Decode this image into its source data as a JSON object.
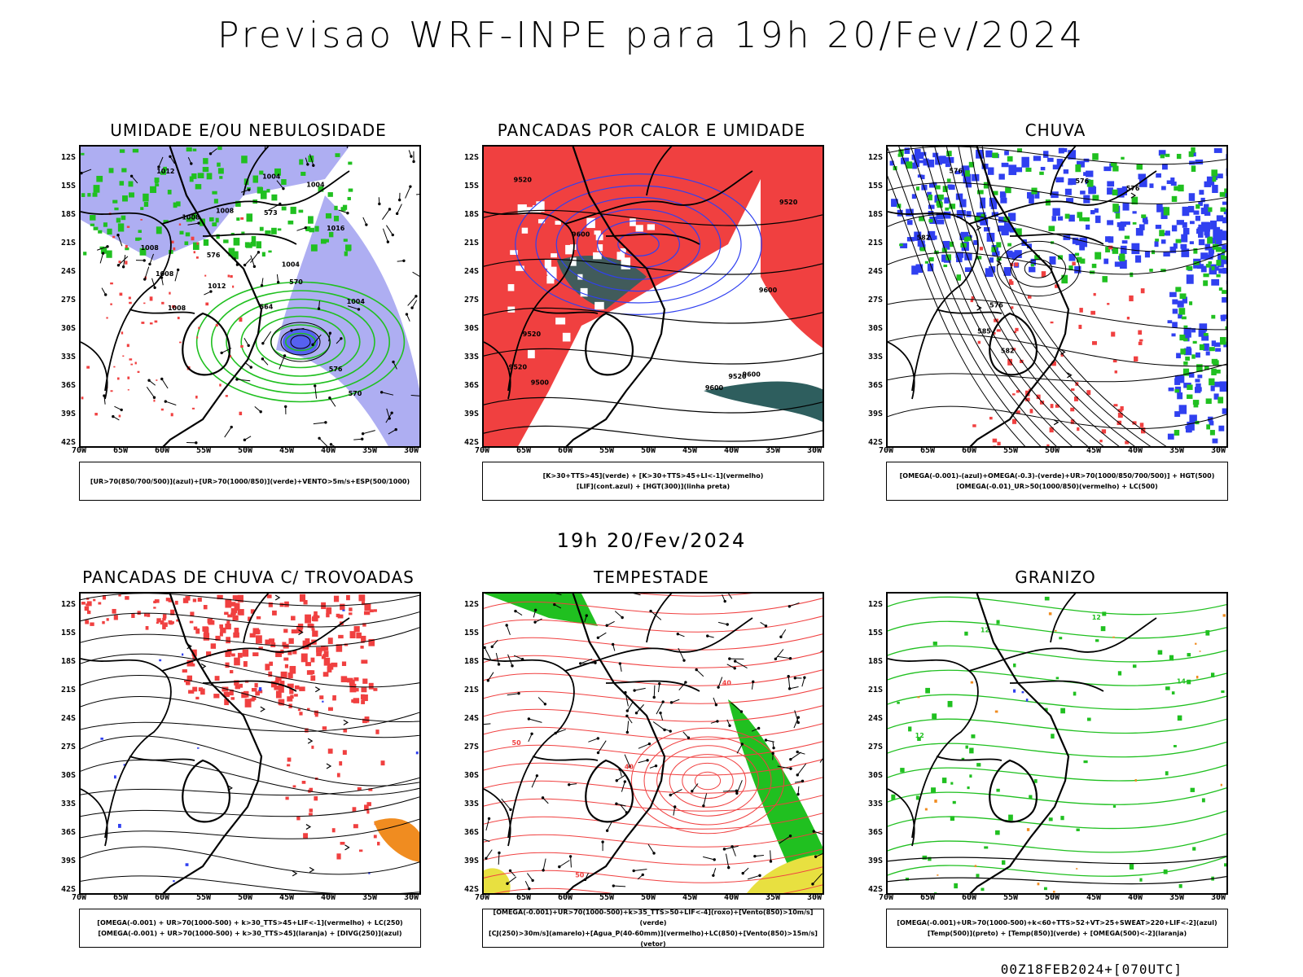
{
  "title": "Previsao WRF-INPE  para 19h 20/Fev/2024",
  "mid_title": "19h 20/Fev/2024",
  "footer": "00Z18FEB2024+[070UTC]",
  "lat_labels": [
    "12S",
    "15S",
    "18S",
    "21S",
    "24S",
    "27S",
    "30S",
    "33S",
    "36S",
    "39S",
    "42S"
  ],
  "lon_labels": [
    "70W",
    "65W",
    "60W",
    "55W",
    "50W",
    "45W",
    "40W",
    "35W",
    "30W"
  ],
  "colors": {
    "red": "#f04040",
    "green": "#20c020",
    "blue": "#3040f0",
    "lavender": "#a0a0f0",
    "teal": "#2e5e5e",
    "orange": "#f08c20",
    "yellow": "#e8e040"
  },
  "panels": [
    {
      "title": "UMIDADE E/OU NEBULOSIDADE",
      "legend": [
        "[UR>70(850/700/500)](azul)+[UR>70(1000/850)](verde)+VENTO>5m/s+ESP(500/1000)"
      ],
      "contour_labels": [
        "1008",
        "1008",
        "1004",
        "1012",
        "1004",
        "1008",
        "1008",
        "1012",
        "1004",
        "1004",
        "1008",
        "1016",
        "570",
        "576",
        "576",
        "573",
        "570",
        "564"
      ]
    },
    {
      "title": "PANCADAS POR CALOR E UMIDADE",
      "legend": [
        "[K>30+TTS>45](verde) + [K>30+TTS>45+LI<-1](vermelho)",
        "[LIF](cont.azul) + [HGT(300)](linha preta)"
      ],
      "contour_labels": [
        "9600",
        "9600",
        "9520",
        "9600",
        "9600",
        "9520",
        "9500",
        "9520",
        "9520",
        "9520"
      ]
    },
    {
      "title": "CHUVA",
      "legend": [
        "[OMEGA(-0.001)-(azul)+OMEGA(-0.3)-(verde)+UR>70(1000/850/700/500)] + HGT(500)",
        "[OMEGA(-0.01)_UR>50(1000/850)(vermelho) + LC(500)"
      ],
      "contour_labels": [
        "585",
        "576",
        "582",
        "576",
        "582",
        "576",
        "576"
      ]
    },
    {
      "title": "PANCADAS DE CHUVA C/ TROVOADAS",
      "legend": [
        "[OMEGA(-0.001) + UR>70(1000-500) + k>30_TTS>45+LIF<-1](vermelho) + LC(250)",
        "[OMEGA(-0.001) + UR>70(1000-500) + k>30_TTS>45](laranja) + [DIVG(250)](azul)"
      ],
      "contour_labels": []
    },
    {
      "title": "TEMPESTADE",
      "legend": [
        "[OMEGA(-0.001)+UR>70(1000-500)+k>35_TTS>50+LIF<-4](roxo)+[Vento(850)>10m/s](verde)",
        "[CJ(250)>30m/s](amarelo)+[Agua_P(40-60mm)](vermelho)+LC(850)+[Vento(850)>15m/s](vetor)"
      ],
      "contour_labels": [
        "50",
        "40",
        "50",
        "40"
      ]
    },
    {
      "title": "GRANIZO",
      "legend": [
        "[OMEGA(-0.001)+UR>70(1000-500)+k<60+TTS>52+VT>25+SWEAT>220+LIF<-2](azul)",
        "[Temp(500)](preto) + [Temp(850)](verde) + [OMEGA(500)<-2](laranja)"
      ],
      "contour_labels": [
        "12",
        "12",
        "12",
        "14"
      ]
    }
  ]
}
